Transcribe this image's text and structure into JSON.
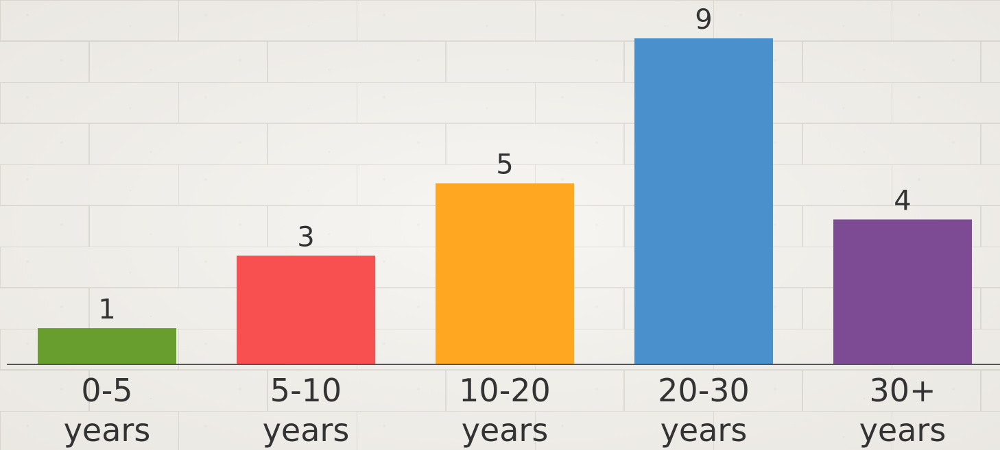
{
  "chart_data": {
    "type": "bar",
    "categories": [
      "0-5\nyears",
      "5-10\nyears",
      "10-20\nyears",
      "20-30\nyears",
      "30+\nyears"
    ],
    "values": [
      1,
      3,
      5,
      9,
      4
    ],
    "colors": [
      "#679E2E",
      "#F85050",
      "#FFA720",
      "#4A90CD",
      "#7D4B94"
    ],
    "axis_color": "#555555",
    "title": "",
    "xlabel": "",
    "ylabel": "",
    "ylim": [
      0,
      9
    ],
    "grid": false,
    "legend": "none",
    "background": "whitewashed brick wall"
  }
}
